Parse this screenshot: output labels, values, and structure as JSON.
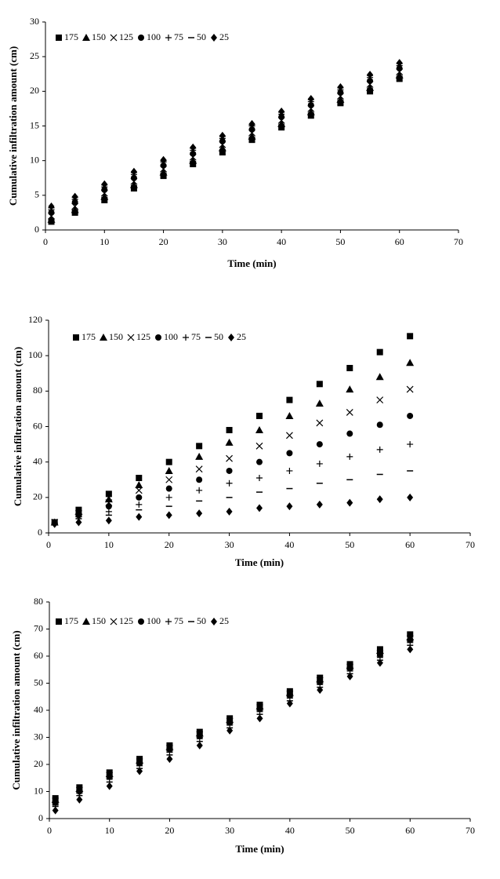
{
  "chart_data": [
    {
      "type": "scatter",
      "x_label": "Time (min)",
      "y_label": "Cumulative infiltration amount (cm)",
      "x": [
        1,
        5,
        10,
        15,
        20,
        25,
        30,
        35,
        40,
        45,
        50,
        55,
        60
      ],
      "xlim": [
        0,
        70
      ],
      "xticks": [
        0,
        10,
        20,
        30,
        40,
        50,
        60,
        70
      ],
      "ylim": [
        0,
        30
      ],
      "yticks": [
        0,
        5,
        10,
        15,
        20,
        25,
        30
      ],
      "series": [
        {
          "name": "175",
          "color": "#000000",
          "marker": "square",
          "values": [
            1.2,
            2.5,
            4.3,
            6.0,
            7.8,
            9.5,
            11.2,
            13.0,
            14.8,
            16.5,
            18.3,
            20.0,
            21.8
          ]
        },
        {
          "name": "150",
          "color": "#000000",
          "marker": "triangle",
          "values": [
            1.5,
            2.9,
            4.8,
            6.5,
            8.3,
            10.0,
            11.8,
            13.5,
            15.3,
            17.0,
            18.8,
            20.5,
            22.3
          ]
        },
        {
          "name": "125",
          "color": "#000000",
          "marker": "x",
          "values": [
            2.0,
            3.4,
            5.3,
            7.0,
            8.8,
            10.5,
            12.3,
            14.0,
            15.8,
            17.5,
            19.3,
            21.0,
            22.8
          ]
        },
        {
          "name": "100",
          "color": "#000000",
          "marker": "circle",
          "values": [
            2.5,
            4.0,
            5.8,
            7.5,
            9.3,
            11.0,
            12.8,
            14.5,
            16.3,
            18.0,
            19.8,
            21.5,
            23.3
          ]
        },
        {
          "name": "75",
          "color": "#000000",
          "marker": "plus",
          "values": [
            2.9,
            4.4,
            6.2,
            8.0,
            9.8,
            11.5,
            13.2,
            15.0,
            16.7,
            18.5,
            20.2,
            22.0,
            23.7
          ]
        },
        {
          "name": "50",
          "color": "#000000",
          "marker": "dash",
          "values": [
            3.2,
            4.7,
            6.5,
            8.3,
            10.0,
            11.8,
            13.5,
            15.2,
            17.0,
            18.8,
            20.5,
            22.3,
            24.0
          ]
        },
        {
          "name": "25",
          "color": "#000000",
          "marker": "diamond",
          "values": [
            3.4,
            4.8,
            6.6,
            8.4,
            10.1,
            11.9,
            13.6,
            15.3,
            17.1,
            18.9,
            20.6,
            22.4,
            24.1
          ]
        }
      ]
    },
    {
      "type": "scatter",
      "x_label": "Time (min)",
      "y_label": "Cumulative infiltration amount (cm)",
      "x": [
        1,
        5,
        10,
        15,
        20,
        25,
        30,
        35,
        40,
        45,
        50,
        55,
        60
      ],
      "xlim": [
        0,
        70
      ],
      "xticks": [
        0,
        10,
        20,
        30,
        40,
        50,
        60,
        70
      ],
      "ylim": [
        0,
        120
      ],
      "yticks": [
        0,
        20,
        40,
        60,
        80,
        100,
        120
      ],
      "series": [
        {
          "name": "175",
          "color": "#000000",
          "marker": "square",
          "values": [
            6,
            13,
            22,
            31,
            40,
            49,
            58,
            66,
            75,
            84,
            93,
            102,
            111
          ]
        },
        {
          "name": "150",
          "color": "#000000",
          "marker": "triangle",
          "values": [
            6,
            12,
            19,
            27,
            35,
            43,
            51,
            58,
            66,
            73,
            81,
            88,
            96
          ]
        },
        {
          "name": "125",
          "color": "#000000",
          "marker": "x",
          "values": [
            6,
            11,
            17,
            24,
            30,
            36,
            42,
            49,
            55,
            62,
            68,
            75,
            81
          ]
        },
        {
          "name": "100",
          "color": "#000000",
          "marker": "circle",
          "values": [
            5.5,
            10,
            15,
            20,
            25,
            30,
            35,
            40,
            45,
            50,
            56,
            61,
            66
          ]
        },
        {
          "name": "75",
          "color": "#000000",
          "marker": "plus",
          "values": [
            5.5,
            9,
            12,
            16,
            20,
            24,
            28,
            31,
            35,
            39,
            43,
            47,
            50
          ]
        },
        {
          "name": "50",
          "color": "#000000",
          "marker": "dash",
          "values": [
            5,
            8,
            10,
            13,
            15,
            18,
            20,
            23,
            25,
            28,
            30,
            33,
            35
          ]
        },
        {
          "name": "25",
          "color": "#000000",
          "marker": "diamond",
          "values": [
            5,
            6,
            7,
            9,
            10,
            11,
            12,
            14,
            15,
            16,
            17,
            19,
            20
          ]
        }
      ]
    },
    {
      "type": "scatter",
      "x_label": "Time (min)",
      "y_label": "Cumulative infiltration amount (cm)",
      "x": [
        1,
        5,
        10,
        15,
        20,
        25,
        30,
        35,
        40,
        45,
        50,
        55,
        60
      ],
      "xlim": [
        0,
        70
      ],
      "xticks": [
        0,
        10,
        20,
        30,
        40,
        50,
        60,
        70
      ],
      "ylim": [
        0,
        80
      ],
      "yticks": [
        0,
        10,
        20,
        30,
        40,
        50,
        60,
        70,
        80
      ],
      "series": [
        {
          "name": "175",
          "color": "#000000",
          "marker": "square",
          "values": [
            7.5,
            11.5,
            17,
            22,
            27,
            32,
            37,
            42,
            47,
            52,
            57,
            62.5,
            68
          ]
        },
        {
          "name": "150",
          "color": "#000000",
          "marker": "triangle",
          "values": [
            7,
            11,
            16.5,
            21.5,
            26.5,
            31.5,
            36.5,
            41.5,
            46.5,
            51.5,
            56.5,
            62,
            67
          ]
        },
        {
          "name": "125",
          "color": "#000000",
          "marker": "x",
          "values": [
            6.5,
            10.5,
            16,
            21,
            26,
            31,
            36,
            41,
            46,
            51,
            56,
            61,
            66.5
          ]
        },
        {
          "name": "100",
          "color": "#000000",
          "marker": "circle",
          "values": [
            6,
            10,
            15.5,
            20.5,
            25.5,
            30.5,
            35.5,
            40.5,
            45.5,
            50.5,
            55.5,
            60.5,
            66
          ]
        },
        {
          "name": "75",
          "color": "#000000",
          "marker": "plus",
          "values": [
            5,
            9.5,
            14.5,
            19.5,
            24.5,
            29.5,
            34.5,
            39.5,
            44.5,
            49.5,
            54.5,
            59.5,
            65
          ]
        },
        {
          "name": "50",
          "color": "#000000",
          "marker": "dash",
          "values": [
            4.5,
            8.5,
            13.5,
            18.5,
            23.5,
            28.5,
            33.5,
            38.5,
            43.5,
            48.5,
            53.5,
            58.5,
            64
          ]
        },
        {
          "name": "25",
          "color": "#000000",
          "marker": "diamond",
          "values": [
            3,
            7,
            12,
            17.5,
            22,
            27,
            32.5,
            37,
            42.5,
            47.5,
            52.5,
            57.5,
            62.5
          ]
        }
      ]
    }
  ]
}
